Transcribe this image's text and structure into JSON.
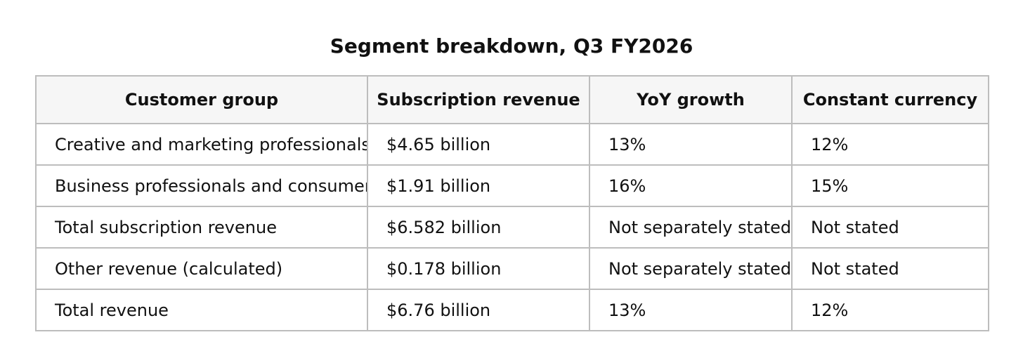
{
  "title": "Segment breakdown, Q3 FY2026",
  "table": {
    "headers": [
      "Customer group",
      "Subscription revenue",
      "YoY growth",
      "Constant currency"
    ],
    "rows": [
      [
        "Creative and marketing professionals",
        "$4.65 billion",
        "13%",
        "12%"
      ],
      [
        "Business professionals and consumers",
        "$1.91 billion",
        "16%",
        "15%"
      ],
      [
        "Total subscription revenue",
        "$6.582 billion",
        "Not separately stated",
        "Not stated"
      ],
      [
        "Other revenue (calculated)",
        "$0.178 billion",
        "Not separately stated",
        "Not stated"
      ],
      [
        "Total revenue",
        "$6.76 billion",
        "13%",
        "12%"
      ]
    ]
  }
}
